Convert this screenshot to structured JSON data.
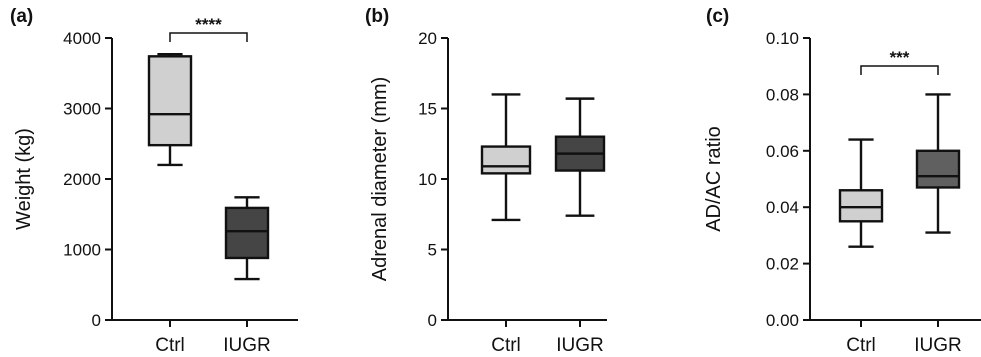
{
  "chart_data": [
    {
      "type": "box",
      "panel_label": "(a)",
      "title": "",
      "ylabel": "Weight (kg)",
      "ylim": [
        0,
        4000
      ],
      "yticks": [
        0,
        1000,
        2000,
        3000,
        4000
      ],
      "categories": [
        "Ctrl",
        "IUGR"
      ],
      "boxes": [
        {
          "category": "Ctrl",
          "min": 2200,
          "q1": 2480,
          "median": 2920,
          "q3": 3740,
          "max": 3770,
          "color": "#d0d0d0"
        },
        {
          "category": "IUGR",
          "min": 580,
          "q1": 880,
          "median": 1260,
          "q3": 1590,
          "max": 1740,
          "color": "#454545"
        }
      ],
      "significance": {
        "pair": [
          "Ctrl",
          "IUGR"
        ],
        "label": "****"
      }
    },
    {
      "type": "box",
      "panel_label": "(b)",
      "title": "",
      "ylabel": "Adrenal diameter (mm)",
      "ylim": [
        0,
        20
      ],
      "yticks": [
        0,
        5,
        10,
        15,
        20
      ],
      "categories": [
        "Ctrl",
        "IUGR"
      ],
      "boxes": [
        {
          "category": "Ctrl",
          "min": 7.1,
          "q1": 10.4,
          "median": 10.9,
          "q3": 12.3,
          "max": 16.0,
          "color": "#d0d0d0"
        },
        {
          "category": "IUGR",
          "min": 7.4,
          "q1": 10.6,
          "median": 11.8,
          "q3": 13.0,
          "max": 15.7,
          "color": "#454545"
        }
      ],
      "significance": null
    },
    {
      "type": "box",
      "panel_label": "(c)",
      "title": "",
      "ylabel": "AD/AC ratio",
      "ylim": [
        0,
        0.1
      ],
      "yticks": [
        "0.00",
        "0.02",
        "0.04",
        "0.06",
        "0.08",
        "0.10"
      ],
      "categories": [
        "Ctrl",
        "IUGR"
      ],
      "boxes": [
        {
          "category": "Ctrl",
          "min": 0.026,
          "q1": 0.035,
          "median": 0.04,
          "q3": 0.046,
          "max": 0.064,
          "color": "#d0d0d0"
        },
        {
          "category": "IUGR",
          "min": 0.031,
          "q1": 0.047,
          "median": 0.051,
          "q3": 0.06,
          "max": 0.08,
          "color": "#606060"
        }
      ],
      "significance": {
        "pair": [
          "Ctrl",
          "IUGR"
        ],
        "label": "***"
      }
    }
  ]
}
